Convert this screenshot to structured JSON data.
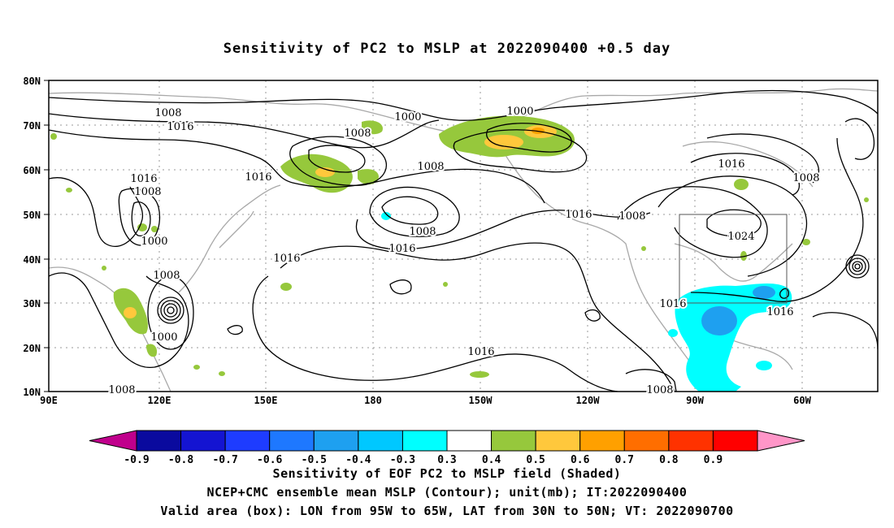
{
  "title": "Sensitivity of PC2 to MSLP at 2022090400 +0.5 day",
  "map": {
    "lat_labels": [
      "80N",
      "70N",
      "60N",
      "50N",
      "40N",
      "30N",
      "20N",
      "10N"
    ],
    "lon_labels": [
      "90E",
      "120E",
      "150E",
      "180",
      "150W",
      "120W",
      "90W",
      "60W"
    ],
    "contour_labels": [
      {
        "text": "1008",
        "key": "a"
      },
      {
        "text": "1016",
        "key": "b"
      },
      {
        "text": "1008",
        "key": "c"
      },
      {
        "text": "1000",
        "key": "d"
      },
      {
        "text": "1000",
        "key": "e"
      },
      {
        "text": "1008",
        "key": "f"
      },
      {
        "text": "1016",
        "key": "g"
      },
      {
        "text": "1016",
        "key": "h"
      },
      {
        "text": "1008",
        "key": "i"
      },
      {
        "text": "1000",
        "key": "j"
      },
      {
        "text": "1008",
        "key": "k"
      },
      {
        "text": "1000",
        "key": "l"
      },
      {
        "text": "1016",
        "key": "m"
      },
      {
        "text": "1008",
        "key": "n"
      },
      {
        "text": "1016",
        "key": "o"
      },
      {
        "text": "1016",
        "key": "p"
      },
      {
        "text": "1016",
        "key": "q"
      },
      {
        "text": "1008",
        "key": "r"
      },
      {
        "text": "1016",
        "key": "s"
      },
      {
        "text": "1008",
        "key": "t"
      },
      {
        "text": "1024",
        "key": "u"
      },
      {
        "text": "1016",
        "key": "v"
      },
      {
        "text": "1016",
        "key": "w"
      },
      {
        "text": "1008",
        "key": "x"
      },
      {
        "text": "1008",
        "key": "y"
      },
      {
        "text": "1016",
        "key": "z"
      }
    ],
    "valid_box": {
      "lon_from": "95W",
      "lon_to": "65W",
      "lat_from": "30N",
      "lat_to": "50N"
    }
  },
  "colorbar": {
    "labels": [
      "-0.9",
      "-0.8",
      "-0.7",
      "-0.6",
      "-0.5",
      "-0.4",
      "-0.3",
      "0.3",
      "0.4",
      "0.5",
      "0.6",
      "0.7",
      "0.8",
      "0.9"
    ],
    "colors": [
      "#c0008c",
      "#0a0a9e",
      "#1414d2",
      "#1e3cff",
      "#1e78ff",
      "#1ea0f0",
      "#00c8ff",
      "#00ffff",
      "#ffffff",
      "#96c83c",
      "#ffc83c",
      "#ffa000",
      "#ff6e00",
      "#ff3200",
      "#ff0000",
      "#ff96c8"
    ]
  },
  "captions": {
    "line1": "Sensitivity of EOF PC2 to MSLP field (Shaded)",
    "line2": "NCEP+CMC ensemble mean MSLP (Contour); unit(mb); IT:2022090400",
    "line3": "Valid area (box): LON from 95W to 65W, LAT from 30N to 50N; VT: 2022090700"
  }
}
